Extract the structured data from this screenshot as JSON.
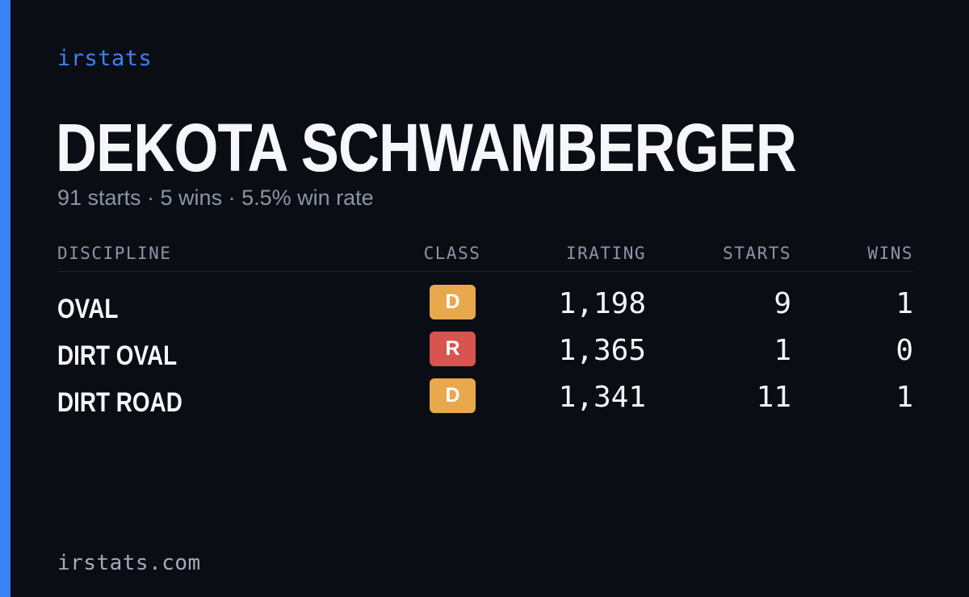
{
  "brand": "irstats",
  "driver": {
    "name": "DEKOTA SCHWAMBERGER",
    "summary": "91 starts · 5 wins · 5.5% win rate"
  },
  "table": {
    "headers": {
      "discipline": "DISCIPLINE",
      "class": "CLASS",
      "irating": "IRATING",
      "starts": "STARTS",
      "wins": "WINS"
    },
    "rows": [
      {
        "discipline": "OVAL",
        "class": "D",
        "class_color": "#e8a84c",
        "irating": "1,198",
        "starts": "9",
        "wins": "1"
      },
      {
        "discipline": "DIRT OVAL",
        "class": "R",
        "class_color": "#d9534f",
        "irating": "1,365",
        "starts": "1",
        "wins": "0"
      },
      {
        "discipline": "DIRT ROAD",
        "class": "D",
        "class_color": "#e8a84c",
        "irating": "1,341",
        "starts": "11",
        "wins": "1"
      }
    ]
  },
  "footer": "irstats.com",
  "colors": {
    "accent": "#3b82f6",
    "background": "#0a0d14"
  }
}
